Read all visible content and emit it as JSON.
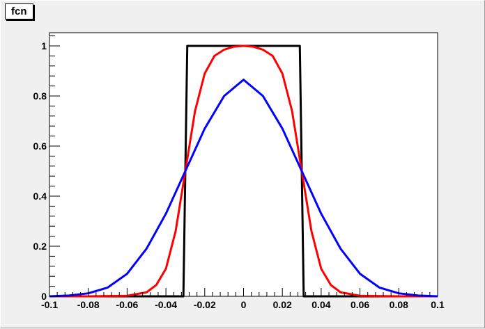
{
  "canvas": {
    "title": "fcn"
  },
  "chart_data": {
    "type": "line",
    "title": "fcn",
    "xlabel": "",
    "ylabel": "",
    "xlim": [
      -0.1,
      0.1
    ],
    "ylim": [
      0,
      1.05
    ],
    "grid": false,
    "x_ticks": [
      -0.1,
      -0.08,
      -0.06,
      -0.04,
      -0.02,
      0,
      0.02,
      0.04,
      0.06,
      0.08,
      0.1
    ],
    "x_tick_labels": [
      "-0.1",
      "-0.08",
      "-0.06",
      "-0.04",
      "-0.02",
      "0",
      "0.02",
      "0.04",
      "0.06",
      "0.08",
      "0.1"
    ],
    "y_ticks": [
      0,
      0.2,
      0.4,
      0.6,
      0.8,
      1
    ],
    "y_tick_labels": [
      "0",
      "0.2",
      "0.4",
      "0.6",
      "0.8",
      "1"
    ],
    "series": [
      {
        "color": "#000000",
        "x": [
          -0.1,
          -0.031,
          -0.03,
          -0.029,
          0.029,
          0.03,
          0.031,
          0.1
        ],
        "y": [
          0,
          0,
          0.5,
          1,
          1,
          0.5,
          0,
          0
        ]
      },
      {
        "color": "#ff0000",
        "x": [
          -0.1,
          -0.08,
          -0.06,
          -0.05,
          -0.045,
          -0.04,
          -0.035,
          -0.03,
          -0.025,
          -0.02,
          -0.015,
          -0.01,
          -0.005,
          0,
          0.005,
          0.01,
          0.015,
          0.02,
          0.025,
          0.03,
          0.035,
          0.04,
          0.045,
          0.05,
          0.06,
          0.08,
          0.1
        ],
        "y": [
          0,
          0,
          0.002,
          0.016,
          0.045,
          0.11,
          0.26,
          0.5,
          0.74,
          0.89,
          0.96,
          0.985,
          0.997,
          1,
          0.997,
          0.985,
          0.96,
          0.89,
          0.74,
          0.5,
          0.26,
          0.11,
          0.045,
          0.016,
          0.002,
          0,
          0
        ]
      },
      {
        "color": "#0000ff",
        "x": [
          -0.1,
          -0.09,
          -0.08,
          -0.07,
          -0.06,
          -0.05,
          -0.04,
          -0.03,
          -0.02,
          -0.01,
          0,
          0.01,
          0.02,
          0.03,
          0.04,
          0.05,
          0.06,
          0.07,
          0.08,
          0.09,
          0.1
        ],
        "y": [
          0,
          0.003,
          0.012,
          0.035,
          0.09,
          0.19,
          0.33,
          0.5,
          0.67,
          0.8,
          0.865,
          0.8,
          0.67,
          0.5,
          0.33,
          0.19,
          0.09,
          0.035,
          0.012,
          0.003,
          0
        ]
      }
    ]
  }
}
